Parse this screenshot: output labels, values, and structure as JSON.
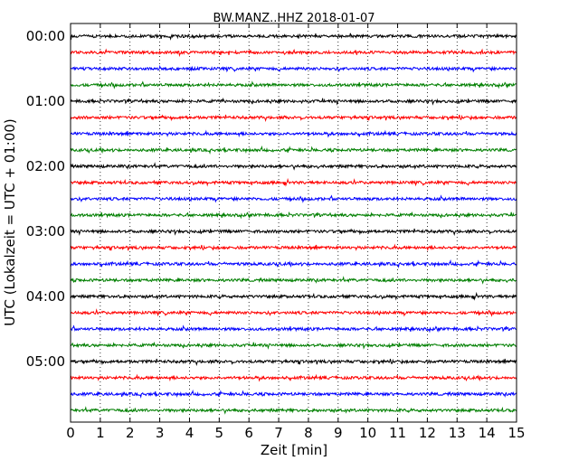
{
  "chart_data": {
    "type": "line",
    "title": "BW.MANZ..HHZ 2018-01-07",
    "xlabel": "Zeit  [min]",
    "ylabel": "UTC (Lokalzeit = UTC + 01:00)",
    "xlim": [
      0,
      15
    ],
    "x_ticks": [
      "0",
      "1",
      "2",
      "3",
      "4",
      "5",
      "6",
      "7",
      "8",
      "9",
      "10",
      "11",
      "12",
      "13",
      "14",
      "15"
    ],
    "y_ticks": [
      {
        "label": "00:00",
        "row": 0
      },
      {
        "label": "01:00",
        "row": 4
      },
      {
        "label": "02:00",
        "row": 8
      },
      {
        "label": "03:00",
        "row": 12
      },
      {
        "label": "04:00",
        "row": 16
      },
      {
        "label": "05:00",
        "row": 20
      }
    ],
    "grid": "vertical dotted",
    "trace_colors": [
      "#000000",
      "#ff0000",
      "#0000ff",
      "#007f00"
    ],
    "trace_interval_minutes": 15,
    "traces": [
      {
        "start": "00:00"
      },
      {
        "start": "00:15"
      },
      {
        "start": "00:30"
      },
      {
        "start": "00:45"
      },
      {
        "start": "01:00"
      },
      {
        "start": "01:15"
      },
      {
        "start": "01:30"
      },
      {
        "start": "01:45"
      },
      {
        "start": "02:00"
      },
      {
        "start": "02:15"
      },
      {
        "start": "02:30"
      },
      {
        "start": "02:45"
      },
      {
        "start": "03:00"
      },
      {
        "start": "03:15"
      },
      {
        "start": "03:30"
      },
      {
        "start": "03:45"
      },
      {
        "start": "04:00"
      },
      {
        "start": "04:15"
      },
      {
        "start": "04:30"
      },
      {
        "start": "04:45"
      },
      {
        "start": "05:00"
      },
      {
        "start": "05:15"
      },
      {
        "start": "05:30"
      },
      {
        "start": "05:45"
      }
    ]
  }
}
